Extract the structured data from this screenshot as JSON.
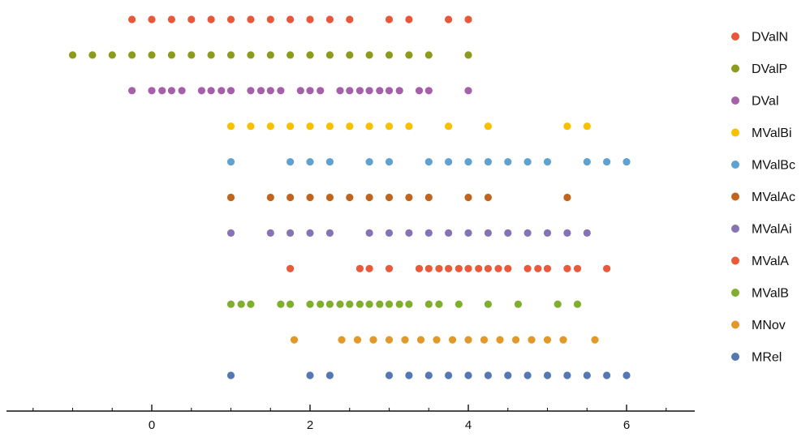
{
  "chart_data": {
    "type": "scatter",
    "title": "",
    "xlabel": "",
    "ylabel": "",
    "xlim": [
      -1.8,
      6.9
    ],
    "x_ticks": [
      0,
      2,
      4,
      6
    ],
    "grid": false,
    "legend_position": "right",
    "series": [
      {
        "name": "DValN",
        "color": "#e8573a",
        "x": [
          -0.25,
          0,
          0.25,
          0.5,
          0.75,
          1,
          1.25,
          1.5,
          1.75,
          2,
          2.25,
          2.5,
          3,
          3.25,
          3.75,
          4
        ]
      },
      {
        "name": "DValP",
        "color": "#8d9b1c",
        "x": [
          -1,
          -0.75,
          -0.5,
          -0.25,
          0,
          0.25,
          0.5,
          0.75,
          1,
          1.25,
          1.5,
          1.75,
          2,
          2.25,
          2.5,
          2.75,
          3,
          3.25,
          3.5,
          4
        ]
      },
      {
        "name": "DVal",
        "color": "#a65fa9",
        "x": [
          -0.25,
          0,
          0.13,
          0.25,
          0.38,
          0.63,
          0.75,
          0.88,
          1,
          1.25,
          1.38,
          1.5,
          1.63,
          1.88,
          2,
          2.13,
          2.38,
          2.5,
          2.63,
          2.75,
          2.88,
          3,
          3.13,
          3.38,
          3.5,
          4
        ]
      },
      {
        "name": "MValBi",
        "color": "#f7c000",
        "x": [
          1,
          1.25,
          1.5,
          1.75,
          2,
          2.25,
          2.5,
          2.75,
          3,
          3.25,
          3.75,
          4.25,
          5.25,
          5.5
        ]
      },
      {
        "name": "MValBc",
        "color": "#5fa2cf",
        "x": [
          1,
          1.75,
          2,
          2.25,
          2.75,
          3,
          3.5,
          3.75,
          4,
          4.25,
          4.5,
          4.75,
          5,
          5.5,
          5.75,
          6
        ]
      },
      {
        "name": "MValAc",
        "color": "#c1651e",
        "x": [
          1,
          1.5,
          1.75,
          2,
          2.25,
          2.5,
          2.75,
          3,
          3.25,
          3.5,
          4,
          4.25,
          5.25
        ]
      },
      {
        "name": "MValAi",
        "color": "#8474b6",
        "x": [
          1,
          1.5,
          1.75,
          2,
          2.25,
          2.75,
          3,
          3.25,
          3.5,
          3.75,
          4,
          4.25,
          4.5,
          4.75,
          5,
          5.25,
          5.5
        ]
      },
      {
        "name": "MValA",
        "color": "#ea5a3a",
        "x": [
          1.75,
          2.63,
          2.75,
          3,
          3.38,
          3.5,
          3.63,
          3.75,
          3.88,
          4,
          4.13,
          4.25,
          4.38,
          4.5,
          4.75,
          4.88,
          5,
          5.25,
          5.38,
          5.75
        ]
      },
      {
        "name": "MValB",
        "color": "#80ae2e",
        "x": [
          1,
          1.13,
          1.25,
          1.63,
          1.75,
          2,
          2.13,
          2.25,
          2.38,
          2.5,
          2.63,
          2.75,
          2.88,
          3,
          3.13,
          3.25,
          3.5,
          3.63,
          3.88,
          4.25,
          4.63,
          5.13,
          5.38
        ]
      },
      {
        "name": "MNov",
        "color": "#e2992a",
        "x": [
          1.8,
          2.4,
          2.6,
          2.8,
          3,
          3.2,
          3.4,
          3.6,
          3.8,
          4,
          4.2,
          4.4,
          4.6,
          4.8,
          5,
          5.2,
          5.6
        ]
      },
      {
        "name": "MRel",
        "color": "#5578b3",
        "x": [
          1,
          2,
          2.25,
          3,
          3.25,
          3.5,
          3.75,
          4,
          4.25,
          4.5,
          4.75,
          5,
          5.25,
          5.5,
          5.75,
          6
        ]
      }
    ]
  }
}
